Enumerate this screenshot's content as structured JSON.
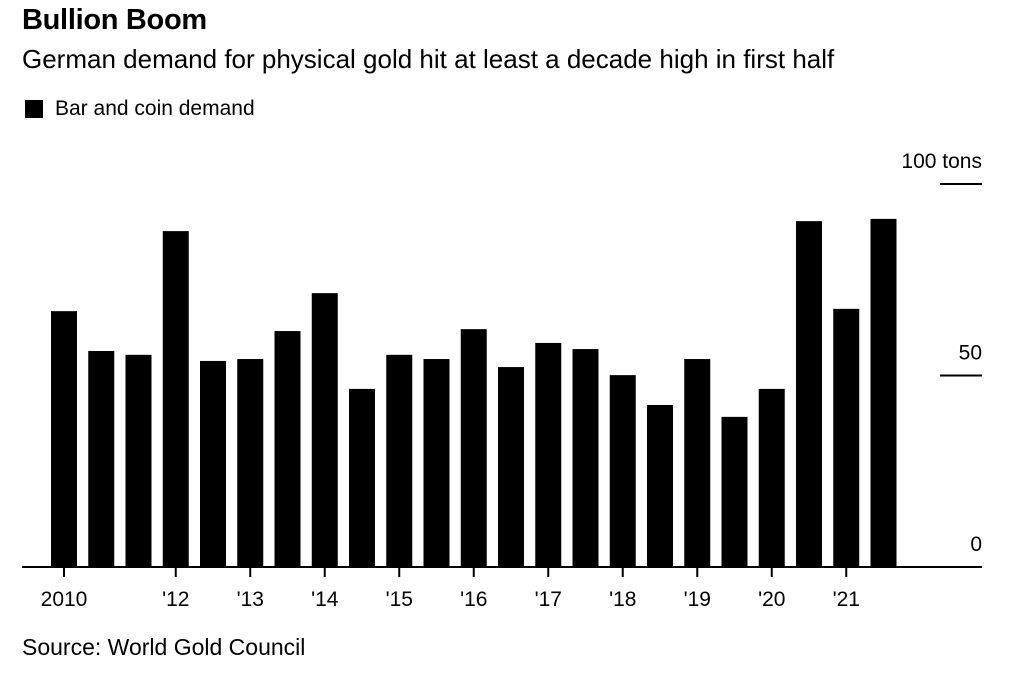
{
  "title": "Bullion Boom",
  "subtitle": "German demand for physical gold hit at least a decade high in first half",
  "legend": [
    {
      "label": "Bar and coin demand",
      "color": "#000000"
    }
  ],
  "source": "Source: World Gold Council",
  "chart_data": {
    "type": "bar",
    "title": "Bullion Boom",
    "subtitle": "German demand for physical gold hit at least a decade high in first half",
    "xlabel": "",
    "ylabel": "tons",
    "ylim": [
      0,
      100
    ],
    "y_ticks": [
      {
        "value": 0,
        "label": "0"
      },
      {
        "value": 50,
        "label": "50"
      },
      {
        "value": 100,
        "label": "100 tons"
      }
    ],
    "y_axis_side": "right",
    "grid": false,
    "legend_position": "top-left",
    "series": [
      {
        "name": "Bar and coin demand",
        "color": "#000000",
        "values": [
          66.8,
          56.4,
          55.4,
          87.7,
          53.8,
          54.3,
          61.6,
          71.5,
          46.5,
          55.4,
          54.3,
          62.1,
          52.2,
          58.5,
          56.9,
          50.1,
          42.3,
          54.3,
          39.2,
          46.5,
          90.3,
          67.4,
          90.9
        ]
      }
    ],
    "x_ticks": [
      {
        "index": 0,
        "label": "2010"
      },
      {
        "index": 3,
        "label": "'12"
      },
      {
        "index": 5,
        "label": "'13"
      },
      {
        "index": 7,
        "label": "'14"
      },
      {
        "index": 9,
        "label": "'15"
      },
      {
        "index": 11,
        "label": "'16"
      },
      {
        "index": 13,
        "label": "'17"
      },
      {
        "index": 15,
        "label": "'18"
      },
      {
        "index": 17,
        "label": "'19"
      },
      {
        "index": 19,
        "label": "'20"
      },
      {
        "index": 21,
        "label": "'21"
      }
    ]
  }
}
